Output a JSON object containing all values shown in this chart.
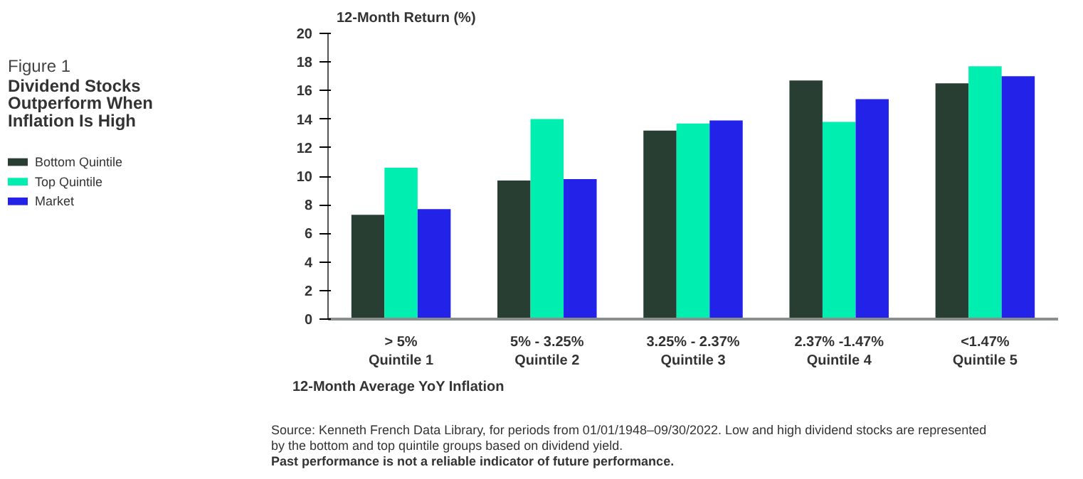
{
  "chart_data": {
    "type": "bar",
    "subtitle": "Figure 1",
    "title": "Dividend Stocks Outperform When Inflation Is High",
    "ylabel": "12-Month Return (%)",
    "xlabel": "12-Month Average YoY Inflation",
    "categories": [
      "> 5%\nQuintile 1",
      "5% - 3.25%\nQuintile 2",
      "3.25% - 2.37%\nQuintile 3",
      "2.37% -1.47%\nQuintile 4",
      "<1.47%\nQuintile 5"
    ],
    "series": [
      {
        "name": "Bottom Quintile",
        "color": "#283e33",
        "values": [
          7.3,
          9.7,
          13.2,
          16.7,
          16.5
        ]
      },
      {
        "name": "Top Quintile",
        "color": "#00efb0",
        "values": [
          10.6,
          14.0,
          13.7,
          13.8,
          17.7
        ]
      },
      {
        "name": "Market",
        "color": "#2222e8",
        "values": [
          7.7,
          9.8,
          13.9,
          15.4,
          17.0
        ]
      }
    ],
    "ylim": [
      0,
      20
    ],
    "yticks": [
      0,
      2,
      4,
      6,
      8,
      10,
      12,
      14,
      16,
      18,
      20
    ],
    "grid": false,
    "legend": "left",
    "annotations": [
      "Source: Kenneth French Data Library, for periods from 01/01/1948–09/30/2022. Low and high dividend stocks are represented by the bottom and top quintile groups based on dividend yield.",
      "Past performance is not a reliable indicator of future performance."
    ]
  }
}
